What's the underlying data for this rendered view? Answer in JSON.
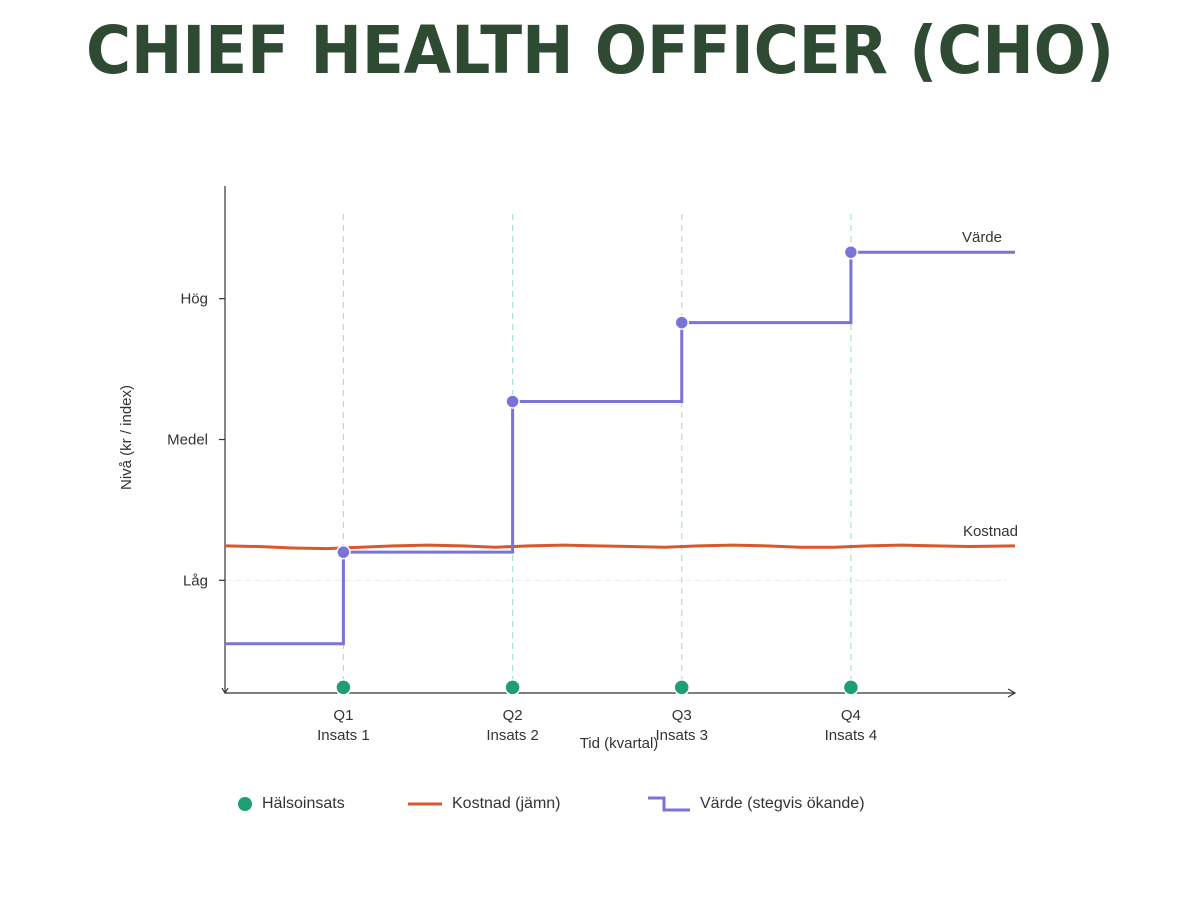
{
  "title": "CHIEF HEALTH OFFICER (CHO)",
  "colors": {
    "title": "#2f4a33",
    "intervention": "#1f9e74",
    "cost": "#d9582b",
    "value": "#7b73d8",
    "axis": "#333333",
    "gridline": "#a8e3cb"
  },
  "chart_data": {
    "type": "line",
    "xlabel": "Tid (kvartal)",
    "ylabel": "Nivå (kr / index)",
    "x_ticks": [
      {
        "x": 1,
        "line1": "Q1",
        "line2": "Insats 1"
      },
      {
        "x": 2,
        "line1": "Q2",
        "line2": "Insats 2"
      },
      {
        "x": 3,
        "line1": "Q3",
        "line2": "Insats 3"
      },
      {
        "x": 4,
        "line1": "Q4",
        "line2": "Insats 4"
      }
    ],
    "y_ticks": [
      {
        "y": 1.0,
        "label": "Låg"
      },
      {
        "y": 2.0,
        "label": "Medel"
      },
      {
        "y": 3.0,
        "label": "Hög"
      }
    ],
    "xlim": [
      0.3,
      4.97
    ],
    "ylim": [
      0.2,
      3.8
    ],
    "grid": "vertical dashed lines at interventions",
    "series": [
      {
        "name": "Kostnad",
        "type": "line",
        "x": [
          0.3,
          0.5,
          0.7,
          0.9,
          1.1,
          1.3,
          1.5,
          1.7,
          1.9,
          2.1,
          2.3,
          2.5,
          2.7,
          2.9,
          3.1,
          3.3,
          3.5,
          3.7,
          3.9,
          4.1,
          4.3,
          4.5,
          4.7,
          4.97
        ],
        "y": [
          1.245,
          1.24,
          1.23,
          1.225,
          1.235,
          1.245,
          1.25,
          1.245,
          1.235,
          1.245,
          1.25,
          1.245,
          1.24,
          1.235,
          1.245,
          1.25,
          1.245,
          1.235,
          1.235,
          1.245,
          1.25,
          1.245,
          1.24,
          1.245
        ]
      },
      {
        "name": "Värde",
        "type": "step",
        "x": [
          0.3,
          1,
          2,
          3,
          4,
          4.97
        ],
        "y": [
          0.55,
          1.2,
          2.27,
          2.83,
          3.33,
          3.33
        ],
        "markers": [
          [
            1,
            1.2
          ],
          [
            2,
            2.27
          ],
          [
            3,
            2.83
          ],
          [
            4,
            3.33
          ]
        ]
      },
      {
        "name": "Hälsoinsats",
        "type": "scatter",
        "x": [
          1,
          2,
          3,
          4
        ],
        "y": [
          0.24,
          0.24,
          0.24,
          0.24
        ]
      }
    ],
    "annotations": [
      "Värde",
      "Kostnad"
    ],
    "legend": {
      "placement": "bottom",
      "items": [
        "Hälsoinsats",
        "Kostnad (jämn)",
        "Värde (stegvis ökande)"
      ]
    }
  }
}
